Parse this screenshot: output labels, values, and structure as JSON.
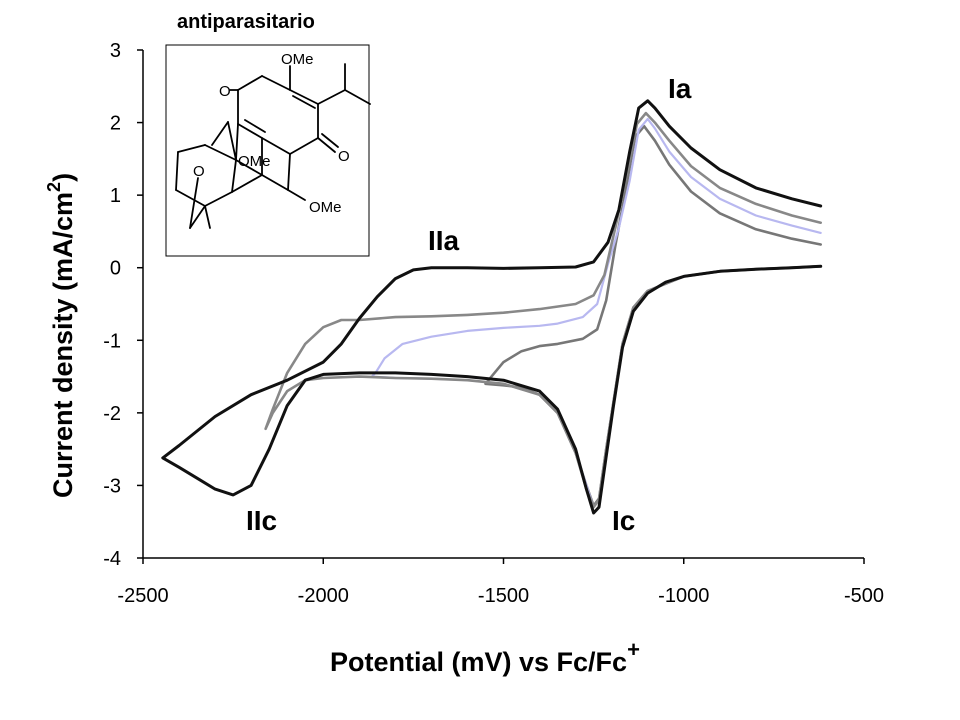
{
  "chart_data": {
    "type": "line",
    "ylabel": "Current density (mA/cm",
    "ylabel_sup": "2",
    "ylabel_tail": ")",
    "xlabel": "Potential (mV) vs Fc/Fc",
    "xlabel_sup": "+",
    "xlim": [
      -2500,
      -500
    ],
    "ylim": [
      -4,
      3
    ],
    "x_ticks": [
      -2500,
      -2000,
      -1500,
      -1000,
      -500
    ],
    "y_ticks": [
      3,
      2,
      1,
      0,
      -1,
      -2,
      -3,
      -4
    ],
    "grid": false,
    "annotations": [
      "Ia",
      "IIa",
      "IIc",
      "Ic"
    ],
    "series": [
      {
        "color": "#111111",
        "points": [
          [
            -620,
            0.85
          ],
          [
            -700,
            0.95
          ],
          [
            -800,
            1.1
          ],
          [
            -900,
            1.35
          ],
          [
            -980,
            1.65
          ],
          [
            -1040,
            1.95
          ],
          [
            -1080,
            2.2
          ],
          [
            -1100,
            2.3
          ],
          [
            -1125,
            2.2
          ],
          [
            -1150,
            1.6
          ],
          [
            -1180,
            0.8
          ],
          [
            -1210,
            0.35
          ],
          [
            -1250,
            0.08
          ],
          [
            -1300,
            0.01
          ],
          [
            -1400,
            0.0
          ],
          [
            -1500,
            -0.01
          ],
          [
            -1600,
            0.0
          ],
          [
            -1700,
            0.0
          ],
          [
            -1750,
            -0.03
          ],
          [
            -1800,
            -0.15
          ],
          [
            -1850,
            -0.4
          ],
          [
            -1900,
            -0.7
          ],
          [
            -1950,
            -1.05
          ],
          [
            -2000,
            -1.3
          ],
          [
            -2100,
            -1.55
          ],
          [
            -2200,
            -1.75
          ],
          [
            -2300,
            -2.05
          ],
          [
            -2400,
            -2.45
          ],
          [
            -2445,
            -2.62
          ],
          [
            -2400,
            -2.75
          ],
          [
            -2350,
            -2.9
          ],
          [
            -2300,
            -3.05
          ],
          [
            -2250,
            -3.13
          ],
          [
            -2200,
            -3.0
          ],
          [
            -2150,
            -2.5
          ],
          [
            -2100,
            -1.9
          ],
          [
            -2050,
            -1.55
          ],
          [
            -2000,
            -1.47
          ],
          [
            -1900,
            -1.45
          ],
          [
            -1800,
            -1.45
          ],
          [
            -1700,
            -1.47
          ],
          [
            -1600,
            -1.5
          ],
          [
            -1500,
            -1.55
          ],
          [
            -1400,
            -1.7
          ],
          [
            -1350,
            -1.95
          ],
          [
            -1300,
            -2.5
          ],
          [
            -1270,
            -3.05
          ],
          [
            -1250,
            -3.38
          ],
          [
            -1235,
            -3.3
          ],
          [
            -1215,
            -2.6
          ],
          [
            -1195,
            -1.9
          ],
          [
            -1170,
            -1.1
          ],
          [
            -1140,
            -0.6
          ],
          [
            -1100,
            -0.35
          ],
          [
            -1050,
            -0.2
          ],
          [
            -1000,
            -0.12
          ],
          [
            -900,
            -0.05
          ],
          [
            -800,
            -0.02
          ],
          [
            -700,
            0.0
          ],
          [
            -620,
            0.02
          ]
        ]
      },
      {
        "color": "#888888",
        "points": [
          [
            -620,
            0.62
          ],
          [
            -700,
            0.72
          ],
          [
            -800,
            0.88
          ],
          [
            -900,
            1.1
          ],
          [
            -980,
            1.4
          ],
          [
            -1040,
            1.75
          ],
          [
            -1080,
            2.0
          ],
          [
            -1105,
            2.13
          ],
          [
            -1130,
            1.98
          ],
          [
            -1160,
            1.25
          ],
          [
            -1190,
            0.55
          ],
          [
            -1220,
            -0.1
          ],
          [
            -1250,
            -0.38
          ],
          [
            -1300,
            -0.5
          ],
          [
            -1400,
            -0.57
          ],
          [
            -1500,
            -0.62
          ],
          [
            -1600,
            -0.65
          ],
          [
            -1700,
            -0.67
          ],
          [
            -1800,
            -0.68
          ],
          [
            -1900,
            -0.72
          ],
          [
            -1950,
            -0.72
          ],
          [
            -2000,
            -0.82
          ],
          [
            -2050,
            -1.05
          ],
          [
            -2100,
            -1.45
          ],
          [
            -2140,
            -1.95
          ],
          [
            -2160,
            -2.22
          ],
          [
            -2140,
            -2.0
          ],
          [
            -2100,
            -1.7
          ],
          [
            -2050,
            -1.55
          ],
          [
            -2000,
            -1.52
          ],
          [
            -1900,
            -1.5
          ],
          [
            -1800,
            -1.52
          ],
          [
            -1700,
            -1.53
          ],
          [
            -1600,
            -1.55
          ],
          [
            -1500,
            -1.6
          ],
          [
            -1400,
            -1.75
          ],
          [
            -1350,
            -2.0
          ],
          [
            -1300,
            -2.55
          ],
          [
            -1270,
            -3.05
          ],
          [
            -1250,
            -3.3
          ],
          [
            -1235,
            -3.2
          ],
          [
            -1215,
            -2.5
          ],
          [
            -1195,
            -1.85
          ],
          [
            -1170,
            -1.05
          ],
          [
            -1140,
            -0.55
          ],
          [
            -1100,
            -0.32
          ],
          [
            -1000,
            -0.12
          ],
          [
            -900,
            -0.05
          ],
          [
            -800,
            -0.02
          ],
          [
            -700,
            0.0
          ],
          [
            -620,
            0.02
          ]
        ]
      },
      {
        "color": "#b8b8f0",
        "points": [
          [
            -620,
            0.48
          ],
          [
            -700,
            0.58
          ],
          [
            -800,
            0.72
          ],
          [
            -900,
            0.95
          ],
          [
            -980,
            1.25
          ],
          [
            -1040,
            1.6
          ],
          [
            -1080,
            1.92
          ],
          [
            -1100,
            2.05
          ],
          [
            -1125,
            1.9
          ],
          [
            -1150,
            1.2
          ],
          [
            -1180,
            0.55
          ],
          [
            -1210,
            0.05
          ],
          [
            -1240,
            -0.5
          ],
          [
            -1280,
            -0.68
          ],
          [
            -1350,
            -0.77
          ],
          [
            -1400,
            -0.8
          ],
          [
            -1500,
            -0.83
          ],
          [
            -1600,
            -0.87
          ],
          [
            -1700,
            -0.95
          ],
          [
            -1780,
            -1.05
          ],
          [
            -1830,
            -1.25
          ],
          [
            -1855,
            -1.45
          ],
          [
            -1865,
            -1.5
          ],
          [
            -1800,
            -1.52
          ],
          [
            -1700,
            -1.53
          ],
          [
            -1600,
            -1.55
          ],
          [
            -1500,
            -1.6
          ],
          [
            -1400,
            -1.75
          ],
          [
            -1350,
            -2.0
          ],
          [
            -1300,
            -2.55
          ],
          [
            -1270,
            -3.0
          ],
          [
            -1250,
            -3.3
          ],
          [
            -1235,
            -3.2
          ],
          [
            -1215,
            -2.5
          ],
          [
            -1195,
            -1.85
          ],
          [
            -1170,
            -1.05
          ],
          [
            -1140,
            -0.55
          ],
          [
            -1100,
            -0.32
          ],
          [
            -1000,
            -0.12
          ],
          [
            -900,
            -0.05
          ],
          [
            -800,
            -0.02
          ],
          [
            -700,
            0.0
          ],
          [
            -620,
            0.02
          ]
        ]
      },
      {
        "color": "#777777",
        "points": [
          [
            -620,
            0.32
          ],
          [
            -700,
            0.4
          ],
          [
            -800,
            0.53
          ],
          [
            -900,
            0.75
          ],
          [
            -980,
            1.05
          ],
          [
            -1040,
            1.42
          ],
          [
            -1080,
            1.75
          ],
          [
            -1110,
            1.95
          ],
          [
            -1135,
            1.8
          ],
          [
            -1160,
            1.1
          ],
          [
            -1190,
            0.3
          ],
          [
            -1215,
            -0.45
          ],
          [
            -1240,
            -0.85
          ],
          [
            -1280,
            -0.98
          ],
          [
            -1350,
            -1.05
          ],
          [
            -1400,
            -1.08
          ],
          [
            -1450,
            -1.15
          ],
          [
            -1500,
            -1.3
          ],
          [
            -1530,
            -1.48
          ],
          [
            -1550,
            -1.6
          ],
          [
            -1500,
            -1.62
          ],
          [
            -1450,
            -1.65
          ],
          [
            -1400,
            -1.75
          ],
          [
            -1350,
            -2.0
          ],
          [
            -1300,
            -2.55
          ],
          [
            -1270,
            -3.0
          ],
          [
            -1250,
            -3.28
          ],
          [
            -1235,
            -3.18
          ],
          [
            -1215,
            -2.5
          ],
          [
            -1195,
            -1.85
          ],
          [
            -1170,
            -1.05
          ],
          [
            -1140,
            -0.55
          ],
          [
            -1100,
            -0.32
          ],
          [
            -1000,
            -0.12
          ],
          [
            -900,
            -0.05
          ],
          [
            -800,
            -0.02
          ],
          [
            -700,
            0.0
          ],
          [
            -620,
            0.02
          ]
        ]
      }
    ]
  },
  "peak_labels": {
    "ia": "Ia",
    "iia": "IIa",
    "iic": "IIc",
    "ic": "Ic"
  },
  "inset": {
    "title": "antiparasitario",
    "labels": {
      "ome_top": "OMe",
      "ome_middle": "OMe",
      "ome_bottom": "OMe",
      "o_left": "O",
      "o_right": "O",
      "o_ether": "O"
    }
  }
}
